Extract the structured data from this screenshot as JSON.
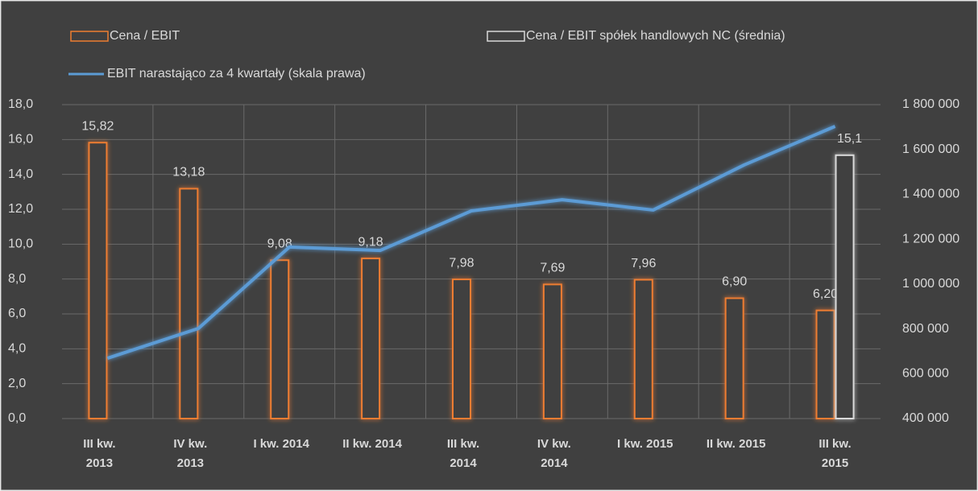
{
  "chart_data": {
    "type": "bar",
    "categories": [
      "III kw.\n2013",
      "IV kw.\n2013",
      "I kw. 2014",
      "II kw. 2014",
      "III kw.\n2014",
      "IV kw.\n2014",
      "I kw. 2015",
      "II kw. 2015",
      "III kw.\n2015"
    ],
    "series": [
      {
        "name": "Cena / EBIT",
        "type": "bar",
        "color": "#ed7d31",
        "values": [
          15.82,
          13.18,
          9.08,
          9.18,
          7.98,
          7.69,
          7.96,
          6.9,
          6.2
        ],
        "value_labels": [
          "15,82",
          "13,18",
          "9,08",
          "9,18",
          "7,98",
          "7,69",
          "7,96",
          "6,90",
          "6,20"
        ]
      },
      {
        "name": "Cena / EBIT spółek handlowych NC (średnia)",
        "type": "bar",
        "color": "#d9d9d9",
        "values": [
          null,
          null,
          null,
          null,
          null,
          null,
          null,
          null,
          15.1
        ],
        "value_labels": [
          null,
          null,
          null,
          null,
          null,
          null,
          null,
          null,
          "15,1"
        ]
      },
      {
        "name": "EBIT narastająco za 4 kwartały (skala prawa)",
        "type": "line",
        "axis": "y2",
        "color": "#5b9bd5",
        "values": [
          669000,
          802000,
          1165000,
          1150000,
          1326000,
          1376000,
          1330000,
          1531000,
          1703000
        ]
      }
    ],
    "ylim": [
      0,
      18
    ],
    "yticks": [
      {
        "value": 0,
        "label": "0,0"
      },
      {
        "value": 2,
        "label": "2,0"
      },
      {
        "value": 4,
        "label": "4,0"
      },
      {
        "value": 6,
        "label": "6,0"
      },
      {
        "value": 8,
        "label": "8,0"
      },
      {
        "value": 10,
        "label": "10,0"
      },
      {
        "value": 12,
        "label": "12,0"
      },
      {
        "value": 14,
        "label": "14,0"
      },
      {
        "value": 16,
        "label": "16,0"
      },
      {
        "value": 18,
        "label": "18,0"
      }
    ],
    "y2lim": [
      400000,
      1800000
    ],
    "y2ticks": [
      {
        "value": 400000,
        "label": "400 000"
      },
      {
        "value": 600000,
        "label": "600 000"
      },
      {
        "value": 800000,
        "label": "800 000"
      },
      {
        "value": 1000000,
        "label": "1 000 000"
      },
      {
        "value": 1200000,
        "label": "1 200 000"
      },
      {
        "value": 1400000,
        "label": "1 400 000"
      },
      {
        "value": 1600000,
        "label": "1 600 000"
      },
      {
        "value": 1800000,
        "label": "1 800 000"
      }
    ],
    "grid": true
  }
}
